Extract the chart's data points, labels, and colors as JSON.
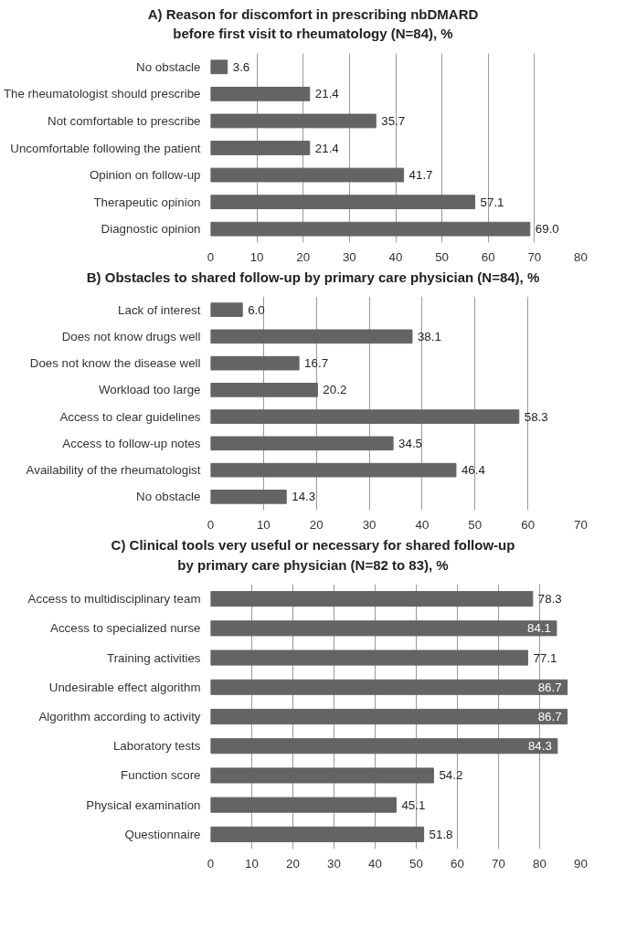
{
  "chart_data": [
    {
      "type": "bar",
      "orientation": "horizontal",
      "title": "A) Reason for discomfort in prescribing nbDMARD\nbefore first visit to rheumatology (N=84), %",
      "categories": [
        "No obstacle",
        "The rheumatologist should prescribe",
        "Not comfortable to prescribe",
        "Uncomfortable following the patient",
        "Opinion on follow-up",
        "Therapeutic opinion",
        "Diagnostic opinion"
      ],
      "values": [
        3.6,
        21.4,
        35.7,
        21.4,
        41.7,
        57.1,
        69.0
      ],
      "value_labels": [
        "3.6",
        "21.4",
        "35.7",
        "21.4",
        "41.7",
        "57.1",
        "69.0"
      ],
      "color": "#646464",
      "xlim": [
        0,
        80
      ],
      "xticks": [
        0,
        10,
        20,
        30,
        40,
        50,
        60,
        70,
        80
      ],
      "grid": "x",
      "data_labels": true,
      "legend": false
    },
    {
      "type": "bar",
      "orientation": "horizontal",
      "title": "B) Obstacles to shared follow-up by primary care physician (N=84), %",
      "categories": [
        "Lack of interest",
        "Does not know drugs well",
        "Does not know the disease well",
        "Workload too large",
        "Access to clear guidelines",
        "Access to follow-up notes",
        "Availability of the rheumatologist",
        "No obstacle"
      ],
      "values": [
        6.0,
        38.1,
        16.7,
        20.2,
        58.3,
        34.5,
        46.4,
        14.3
      ],
      "value_labels": [
        "6.0",
        "38.1",
        "16.7",
        "20.2",
        "58.3",
        "34.5",
        "46.4",
        "14.3"
      ],
      "color": "#646464",
      "xlim": [
        0,
        70
      ],
      "xticks": [
        0,
        10,
        20,
        30,
        40,
        50,
        60,
        70
      ],
      "grid": "x",
      "data_labels": true,
      "legend": false
    },
    {
      "type": "bar",
      "orientation": "horizontal",
      "title": "C) Clinical tools very useful or necessary for shared follow-up\nby primary care physician (N=82 to 83), %",
      "categories": [
        "Access to multidisciplinary team",
        "Access to specialized nurse",
        "Training activities",
        "Undesirable effect algorithm",
        "Algorithm according to activity",
        "Laboratory tests",
        "Function score",
        "Physical examination",
        "Questionnaire"
      ],
      "values": [
        78.3,
        84.1,
        77.1,
        86.7,
        86.7,
        84.3,
        54.2,
        45.1,
        51.8
      ],
      "color": "#646464",
      "xlim": [
        0,
        90
      ],
      "xticks": [
        0,
        10,
        20,
        30,
        40,
        50,
        60,
        70,
        80,
        90
      ],
      "grid": "x",
      "data_labels": true,
      "legend": false
    }
  ]
}
